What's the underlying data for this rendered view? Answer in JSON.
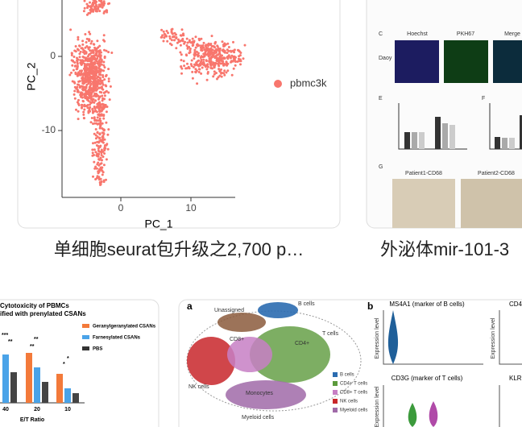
{
  "cards": [
    {
      "caption": "单细胞seurat包升级之2,700 p…",
      "plot": {
        "ylabel": "PC_2",
        "xlabel": "PC_1",
        "yticks": [
          0,
          -10
        ],
        "xticks": [
          0,
          10
        ],
        "legend": "pbmc3k",
        "color": "#f8766d"
      }
    },
    {
      "caption": "外泌体mir-101-3",
      "figure": {
        "panel_c": "C",
        "hoechst": "Hoechst",
        "pkh67": "PKH67",
        "merge": "Merge",
        "row": "Daoy",
        "panel_e": "E",
        "panel_f": "F",
        "panel_g": "G",
        "patient1": "Patient1-CD68",
        "patient2": "Patient2-CD68"
      }
    },
    {
      "figure": {
        "title": "Cytotoxicity of PBMCs",
        "subtitle": "ified with prenylated CSANs",
        "legend": [
          "Geranylgeranylated CSANs",
          "Farnesylated CSANs",
          "PBS"
        ],
        "xlabels": [
          "40",
          "20",
          "10"
        ],
        "xlabel": "E/T Ratio",
        "stars": [
          "***",
          "**",
          "**",
          "**",
          "*",
          "*"
        ]
      }
    },
    {
      "figure": {
        "panel_a": "a",
        "clusters": [
          "Unassigned",
          "B cells",
          "CD8+",
          "CD4+",
          "T cells",
          "NK cells",
          "Monocytes",
          "Myeloid cells"
        ],
        "legend": [
          "B cells",
          "CD4+ T cells",
          "CD8+ T cells",
          "NK cells",
          "Myeloid cells"
        ],
        "panel_b": "b",
        "v1": "MS4A1 (marker of B cells)",
        "v2": "CD4",
        "v3": "CD3G (marker of T cells)",
        "v4": "KLR",
        "ylab": "Expression level"
      }
    }
  ]
}
